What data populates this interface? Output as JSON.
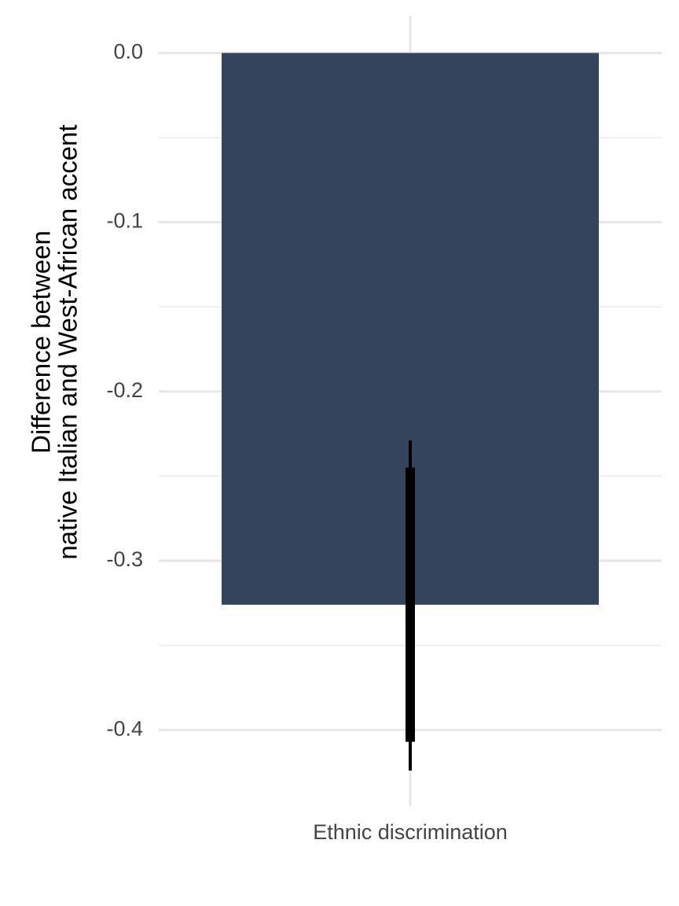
{
  "chart_data": {
    "type": "bar",
    "categories": [
      "Ethnic discrimination"
    ],
    "values": [
      -0.326
    ],
    "color": "#34445c",
    "ci_wide": [
      [
        -0.424,
        -0.229
      ]
    ],
    "ci_narrow": [
      [
        -0.407,
        -0.245
      ]
    ],
    "ylabel": [
      "Difference between",
      "native Italian and West-African accent"
    ],
    "ylim": [
      -0.445,
      0.022
    ],
    "yticks": [
      {
        "value": 0,
        "label": "0.0"
      },
      -0.1,
      -0.2,
      -0.3,
      -0.4
    ],
    "minor_yticks": [
      -0.05,
      -0.15,
      -0.25,
      -0.35
    ],
    "grid": true
  }
}
